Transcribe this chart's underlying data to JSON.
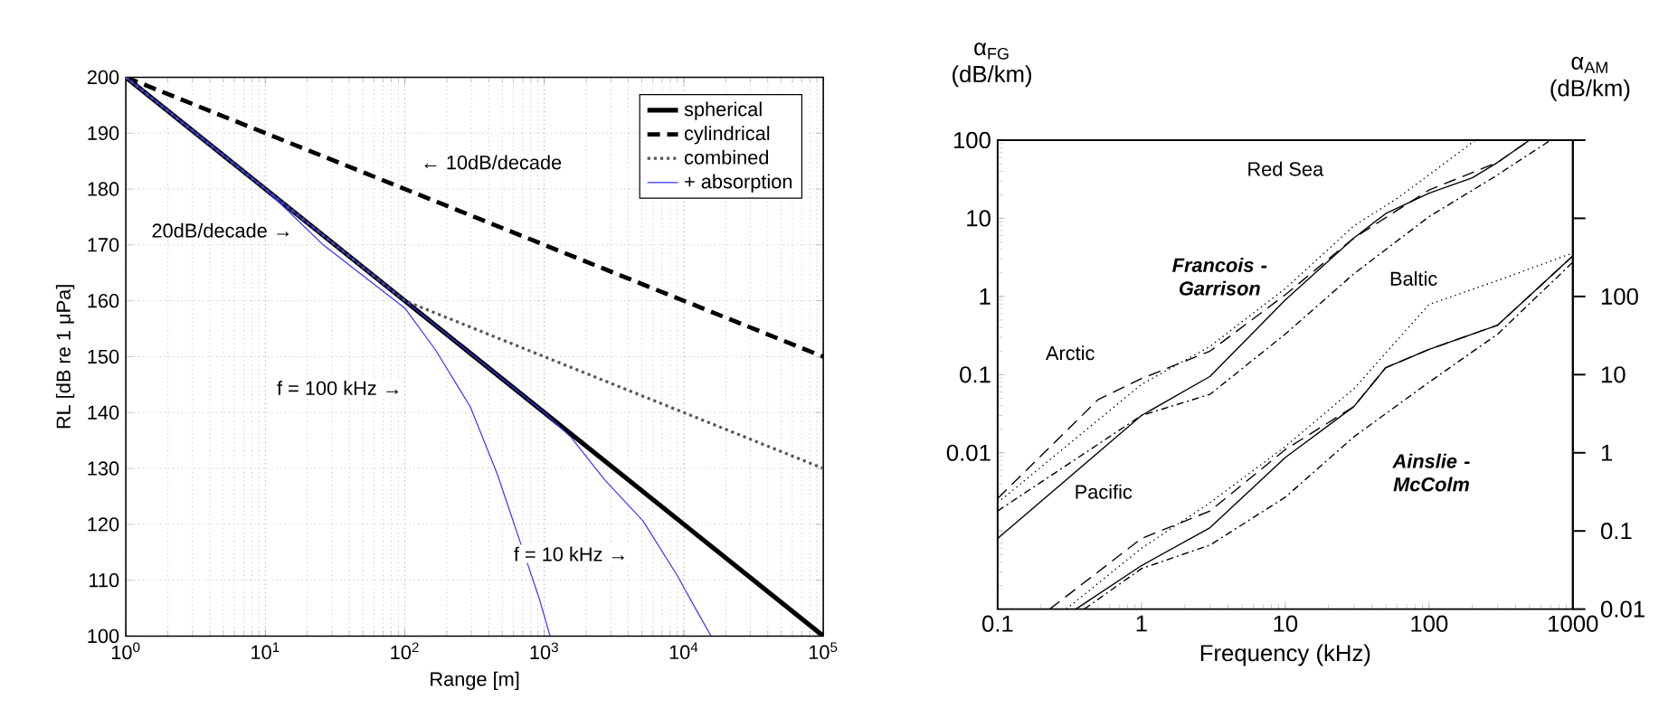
{
  "chart_data": [
    {
      "type": "line",
      "xlabel": "Range [m]",
      "ylabel": "RL [dB re 1 μPa]",
      "log": "x",
      "xlim": [
        1,
        100000
      ],
      "ylim": [
        100,
        200
      ],
      "xticks": [
        {
          "value": 1,
          "label": "10$^{0}$"
        },
        {
          "value": 10,
          "label": "10$^{1}$"
        },
        {
          "value": 100,
          "label": "10$^{2}$"
        },
        {
          "value": 1000,
          "label": "10$^{3}$"
        },
        {
          "value": 10000,
          "label": "10$^{4}$"
        },
        {
          "value": 100000,
          "label": "10$^{5}$"
        }
      ],
      "yticks": [
        100,
        110,
        120,
        130,
        140,
        150,
        160,
        170,
        180,
        190,
        200
      ],
      "grid": true,
      "legend": "top right",
      "annotations": [
        "← 10dB/decade",
        "20dB/decade →",
        "f = 100 kHz →",
        "f = 10 kHz →"
      ],
      "series": [
        {
          "name": "spherical",
          "color": "#000000",
          "line_style": "solid",
          "x": [
            1,
            100000
          ],
          "values": [
            200,
            100
          ]
        },
        {
          "name": "cylindrical",
          "color": "#000000",
          "line_style": "dashed",
          "x": [
            1,
            100000
          ],
          "values": [
            200,
            150
          ]
        },
        {
          "name": "combined",
          "color": "#555555",
          "line_style": "dotted",
          "x": [
            1,
            100,
            100000
          ],
          "values": [
            200,
            160,
            130
          ]
        },
        {
          "name": "+ absorption",
          "color": "#3333ff",
          "line_style": "solid",
          "x": [
            1,
            10,
            26,
            100,
            166,
            295,
            460,
            660,
            920,
            1100
          ],
          "values": [
            200,
            180,
            170,
            158.7,
            151.2,
            141,
            129,
            117.4,
            106.7,
            100
          ]
        },
        {
          "color": "#3333ff",
          "line_style": "solid",
          "x": [
            1,
            100,
            1000,
            1550,
            2700,
            5100,
            8900,
            12400,
            15700
          ],
          "values": [
            200,
            160,
            140,
            135.6,
            128,
            120.6,
            111,
            104.5,
            100
          ]
        }
      ]
    },
    {
      "type": "line",
      "xlabel": "Frequency (kHz)",
      "ylabel": "α$_{FG}$ (dB/km)",
      "log": "xy",
      "xlim": [
        0.1,
        1000
      ],
      "ylim": [
        0.0001,
        100
      ],
      "xticks": [
        0.1,
        1,
        10,
        100,
        1000
      ],
      "yticks": [
        {
          "value": 0.0001,
          "label": null
        },
        {
          "value": 0.001,
          "label": null
        },
        0.01,
        0.1,
        1,
        10,
        100
      ],
      "annotations": [
        "Francois - Garrison",
        "Ainslie - McColm"
      ],
      "series": [
        {
          "name": "Arctic",
          "color": "#000000",
          "line_style": "dashed",
          "x": [
            0.1,
            0.5,
            1,
            3,
            10,
            30,
            100,
            300,
            500
          ],
          "values": [
            0.0026,
            0.048,
            0.089,
            0.2,
            1.05,
            5.6,
            23,
            52,
            100
          ]
        },
        {
          "name": "Pacific",
          "color": "#000000",
          "line_style": "solid",
          "x": [
            0.1,
            1,
            3,
            10,
            30,
            50,
            100,
            200,
            300,
            500
          ],
          "values": [
            0.0008,
            0.03,
            0.095,
            0.9,
            5.6,
            11.5,
            21,
            33,
            52,
            100
          ]
        },
        {
          "name": "Red Sea",
          "color": "#000000",
          "line_style": "dotted",
          "x": [
            0.1,
            1,
            3,
            10,
            30,
            60,
            100,
            210
          ],
          "values": [
            0.0023,
            0.075,
            0.23,
            1.26,
            8,
            18,
            36,
            100
          ]
        },
        {
          "name": "Baltic",
          "color": "#000000",
          "line_style": "dashdot",
          "x": [
            0.1,
            1,
            3,
            10,
            30,
            100,
            300,
            700
          ],
          "values": [
            0.0018,
            0.03,
            0.056,
            0.33,
            1.95,
            10.5,
            36,
            100
          ]
        }
      ]
    },
    {
      "type": "line",
      "ylabel": "α$_{AM}$ (dB/km)",
      "log": "xy",
      "xlim": [
        0.1,
        1000
      ],
      "ylim": [
        0.01,
        10000
      ],
      "tick_labels": "y",
      "yticks": [
        0.01,
        0.1,
        1,
        10,
        100,
        {
          "value": 1000,
          "label": null
        },
        {
          "value": 10000,
          "label": null
        }
      ],
      "series": [
        {
          "color": "#000000",
          "line_style": "solid",
          "x": [
            0.35,
            1,
            3,
            10,
            30,
            50,
            100,
            300,
            1000
          ],
          "values": [
            0.01,
            0.036,
            0.11,
            0.87,
            3.9,
            12.3,
            21,
            43,
            330
          ]
        },
        {
          "color": "#000000",
          "line_style": "dashed",
          "x": [
            0.23,
            1,
            3,
            10,
            30,
            50,
            100,
            300,
            1000
          ],
          "values": [
            0.01,
            0.08,
            0.18,
            1.1,
            3.9,
            12.3,
            21,
            43,
            330
          ]
        },
        {
          "color": "#000000",
          "line_style": "dotted",
          "x": [
            0.3,
            1,
            3,
            10,
            30,
            100,
            300,
            1000
          ],
          "values": [
            0.01,
            0.06,
            0.23,
            1.2,
            6.6,
            79,
            160,
            360
          ]
        },
        {
          "color": "#000000",
          "line_style": "dashdot",
          "x": [
            0.4,
            1,
            3,
            10,
            30,
            100,
            300,
            1000
          ],
          "values": [
            0.01,
            0.033,
            0.066,
            0.27,
            1.6,
            8,
            33,
            275
          ]
        }
      ]
    }
  ]
}
